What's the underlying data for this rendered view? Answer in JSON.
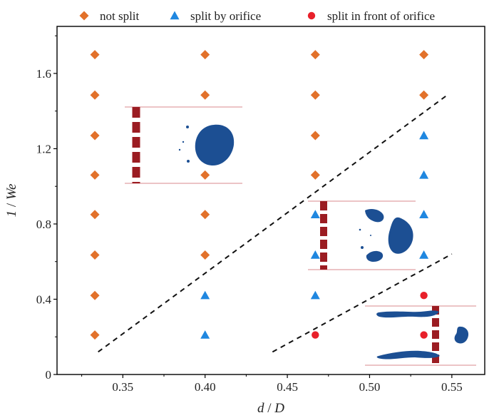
{
  "chart_data": {
    "type": "scatter",
    "xlabel": "d / D",
    "ylabel": "1 / We",
    "xlim": [
      0.31,
      0.57
    ],
    "ylim": [
      0,
      1.85
    ],
    "x_ticks": [
      0.35,
      0.4,
      0.45,
      0.5,
      0.55
    ],
    "x_tick_labels": [
      "0.35",
      "0.40",
      "0.45",
      "0.50",
      "0.55"
    ],
    "y_ticks": [
      0,
      0.4,
      0.8,
      1.2,
      1.6
    ],
    "y_tick_labels": [
      "0",
      "0.4",
      "0.8",
      "1.2",
      "1.6"
    ],
    "grid": false,
    "legend_position": "top",
    "series": [
      {
        "name": "not split",
        "marker": "diamond",
        "color": "#e2712a",
        "points": [
          [
            0.333,
            0.21
          ],
          [
            0.333,
            0.42
          ],
          [
            0.333,
            0.635
          ],
          [
            0.333,
            0.85
          ],
          [
            0.333,
            1.06
          ],
          [
            0.333,
            1.27
          ],
          [
            0.333,
            1.485
          ],
          [
            0.333,
            1.7
          ],
          [
            0.4,
            0.635
          ],
          [
            0.4,
            0.85
          ],
          [
            0.4,
            1.06
          ],
          [
            0.4,
            1.485
          ],
          [
            0.4,
            1.7
          ],
          [
            0.467,
            1.06
          ],
          [
            0.467,
            1.27
          ],
          [
            0.467,
            1.485
          ],
          [
            0.467,
            1.7
          ],
          [
            0.533,
            1.485
          ],
          [
            0.533,
            1.7
          ]
        ]
      },
      {
        "name": "split by orifice",
        "marker": "triangle",
        "color": "#1f87e0",
        "points": [
          [
            0.4,
            0.21
          ],
          [
            0.4,
            0.42
          ],
          [
            0.467,
            0.42
          ],
          [
            0.467,
            0.635
          ],
          [
            0.467,
            0.85
          ],
          [
            0.533,
            0.635
          ],
          [
            0.533,
            0.85
          ],
          [
            0.533,
            1.06
          ],
          [
            0.533,
            1.27
          ]
        ]
      },
      {
        "name": "split in front of orifice",
        "marker": "circle",
        "color": "#e8202a",
        "points": [
          [
            0.467,
            0.21
          ],
          [
            0.533,
            0.21
          ],
          [
            0.533,
            0.42
          ]
        ]
      }
    ],
    "boundary_lines": [
      {
        "style": "dashed",
        "color": "#111111",
        "from": [
          0.335,
          0.12
        ],
        "to": [
          0.548,
          1.49
        ]
      },
      {
        "style": "dashed",
        "color": "#111111",
        "from": [
          0.441,
          0.12
        ],
        "to": [
          0.55,
          0.64
        ]
      }
    ],
    "colors": {
      "blob": "#1c4f93",
      "orifice": "#9b1c22",
      "wall": "#e6b0b4"
    }
  }
}
